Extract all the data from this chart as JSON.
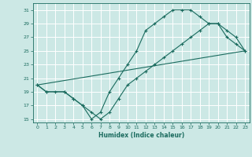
{
  "xlabel": "Humidex (Indice chaleur)",
  "xlim": [
    -0.5,
    23.5
  ],
  "ylim": [
    14.5,
    32
  ],
  "xticks": [
    0,
    1,
    2,
    3,
    4,
    5,
    6,
    7,
    8,
    9,
    10,
    11,
    12,
    13,
    14,
    15,
    16,
    17,
    18,
    19,
    20,
    21,
    22,
    23
  ],
  "yticks": [
    15,
    17,
    19,
    21,
    23,
    25,
    27,
    29,
    31
  ],
  "bg_color": "#cce8e5",
  "grid_color": "#ffffff",
  "line_color": "#1a6b5e",
  "line1_x": [
    0,
    1,
    3,
    4,
    5,
    6,
    7,
    8,
    9,
    10,
    11,
    12,
    13,
    14,
    15,
    16,
    17,
    18,
    19,
    20,
    21,
    22,
    23
  ],
  "line1_y": [
    20,
    19,
    19,
    18,
    17,
    15,
    16,
    19,
    21,
    23,
    25,
    28,
    29,
    30,
    31,
    31,
    31,
    30,
    29,
    29,
    27,
    26,
    25
  ],
  "line2_x": [
    0,
    1,
    2,
    3,
    4,
    5,
    6,
    7,
    8,
    9,
    10,
    11,
    12,
    13,
    14,
    15,
    16,
    17,
    18,
    19,
    20,
    21,
    22,
    23
  ],
  "line2_y": [
    20,
    19,
    19,
    19,
    18,
    17,
    16,
    15,
    16,
    18,
    20,
    21,
    22,
    23,
    24,
    25,
    26,
    27,
    28,
    29,
    29,
    28,
    27,
    25
  ],
  "line3_x": [
    0,
    23
  ],
  "line3_y": [
    20,
    25
  ]
}
